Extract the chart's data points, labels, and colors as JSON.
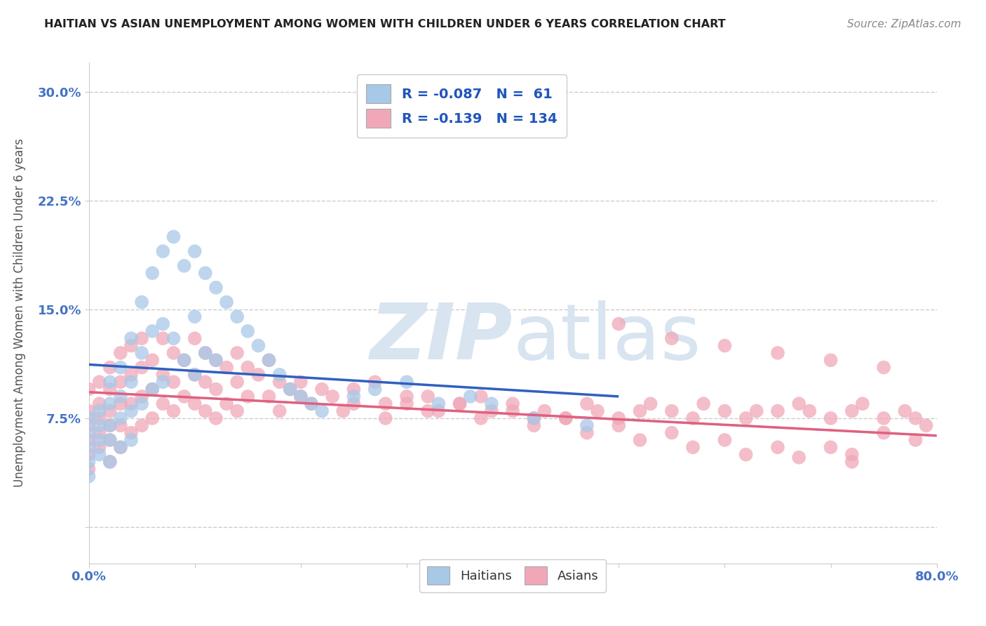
{
  "title": "HAITIAN VS ASIAN UNEMPLOYMENT AMONG WOMEN WITH CHILDREN UNDER 6 YEARS CORRELATION CHART",
  "source": "Source: ZipAtlas.com",
  "ylabel": "Unemployment Among Women with Children Under 6 years",
  "xlim": [
    0.0,
    0.8
  ],
  "ylim": [
    -0.025,
    0.32
  ],
  "xticks": [
    0.0,
    0.1,
    0.2,
    0.3,
    0.4,
    0.5,
    0.6,
    0.7,
    0.8
  ],
  "xticklabels": [
    "0.0%",
    "",
    "",
    "",
    "",
    "",
    "",
    "",
    "80.0%"
  ],
  "yticks": [
    0.0,
    0.075,
    0.15,
    0.225,
    0.3
  ],
  "yticklabels": [
    "",
    "7.5%",
    "15.0%",
    "22.5%",
    "30.0%"
  ],
  "haitian_R": -0.087,
  "haitian_N": 61,
  "asian_R": -0.139,
  "asian_N": 134,
  "haitian_color": "#a8c8e8",
  "asian_color": "#f0a8b8",
  "haitian_line_color": "#3060c0",
  "asian_line_color": "#e06080",
  "trend_dash_color": "#b8c8d8",
  "watermark_color": "#d8e4f0",
  "background_color": "#ffffff",
  "grid_color": "#cccccc",
  "haitian_scatter_x": [
    0.0,
    0.0,
    0.0,
    0.0,
    0.0,
    0.01,
    0.01,
    0.01,
    0.01,
    0.02,
    0.02,
    0.02,
    0.02,
    0.02,
    0.03,
    0.03,
    0.03,
    0.03,
    0.04,
    0.04,
    0.04,
    0.04,
    0.05,
    0.05,
    0.05,
    0.06,
    0.06,
    0.06,
    0.07,
    0.07,
    0.07,
    0.08,
    0.08,
    0.09,
    0.09,
    0.1,
    0.1,
    0.1,
    0.11,
    0.11,
    0.12,
    0.12,
    0.13,
    0.14,
    0.15,
    0.16,
    0.17,
    0.18,
    0.19,
    0.2,
    0.21,
    0.22,
    0.25,
    0.27,
    0.3,
    0.33,
    0.36,
    0.38,
    0.42,
    0.47
  ],
  "haitian_scatter_y": [
    0.075,
    0.065,
    0.055,
    0.045,
    0.035,
    0.08,
    0.07,
    0.06,
    0.05,
    0.1,
    0.085,
    0.07,
    0.06,
    0.045,
    0.11,
    0.09,
    0.075,
    0.055,
    0.13,
    0.1,
    0.08,
    0.06,
    0.155,
    0.12,
    0.085,
    0.175,
    0.135,
    0.095,
    0.19,
    0.14,
    0.1,
    0.2,
    0.13,
    0.18,
    0.115,
    0.19,
    0.145,
    0.105,
    0.175,
    0.12,
    0.165,
    0.115,
    0.155,
    0.145,
    0.135,
    0.125,
    0.115,
    0.105,
    0.095,
    0.09,
    0.085,
    0.08,
    0.09,
    0.095,
    0.1,
    0.085,
    0.09,
    0.085,
    0.075,
    0.07
  ],
  "asian_scatter_x": [
    0.0,
    0.0,
    0.0,
    0.0,
    0.0,
    0.0,
    0.01,
    0.01,
    0.01,
    0.01,
    0.01,
    0.02,
    0.02,
    0.02,
    0.02,
    0.02,
    0.02,
    0.03,
    0.03,
    0.03,
    0.03,
    0.03,
    0.04,
    0.04,
    0.04,
    0.04,
    0.05,
    0.05,
    0.05,
    0.05,
    0.06,
    0.06,
    0.06,
    0.07,
    0.07,
    0.07,
    0.08,
    0.08,
    0.08,
    0.09,
    0.09,
    0.1,
    0.1,
    0.1,
    0.11,
    0.11,
    0.11,
    0.12,
    0.12,
    0.12,
    0.13,
    0.13,
    0.14,
    0.14,
    0.14,
    0.15,
    0.15,
    0.16,
    0.17,
    0.17,
    0.18,
    0.18,
    0.19,
    0.2,
    0.21,
    0.22,
    0.23,
    0.24,
    0.25,
    0.27,
    0.28,
    0.3,
    0.32,
    0.33,
    0.35,
    0.37,
    0.38,
    0.4,
    0.42,
    0.43,
    0.45,
    0.47,
    0.48,
    0.5,
    0.52,
    0.53,
    0.55,
    0.57,
    0.58,
    0.6,
    0.62,
    0.63,
    0.65,
    0.67,
    0.68,
    0.7,
    0.72,
    0.73,
    0.75,
    0.77,
    0.78,
    0.79,
    0.5,
    0.55,
    0.6,
    0.65,
    0.7,
    0.75,
    0.3,
    0.35,
    0.4,
    0.45,
    0.5,
    0.55,
    0.6,
    0.65,
    0.7,
    0.72,
    0.75,
    0.78,
    0.2,
    0.25,
    0.28,
    0.32,
    0.37,
    0.42,
    0.47,
    0.52,
    0.57,
    0.62,
    0.67,
    0.72
  ],
  "asian_scatter_y": [
    0.095,
    0.08,
    0.07,
    0.06,
    0.05,
    0.04,
    0.1,
    0.085,
    0.075,
    0.065,
    0.055,
    0.11,
    0.095,
    0.08,
    0.07,
    0.06,
    0.045,
    0.12,
    0.1,
    0.085,
    0.07,
    0.055,
    0.125,
    0.105,
    0.085,
    0.065,
    0.13,
    0.11,
    0.09,
    0.07,
    0.115,
    0.095,
    0.075,
    0.13,
    0.105,
    0.085,
    0.12,
    0.1,
    0.08,
    0.115,
    0.09,
    0.13,
    0.105,
    0.085,
    0.12,
    0.1,
    0.08,
    0.115,
    0.095,
    0.075,
    0.11,
    0.085,
    0.12,
    0.1,
    0.08,
    0.11,
    0.09,
    0.105,
    0.115,
    0.09,
    0.1,
    0.08,
    0.095,
    0.09,
    0.085,
    0.095,
    0.09,
    0.08,
    0.085,
    0.1,
    0.075,
    0.085,
    0.09,
    0.08,
    0.085,
    0.09,
    0.08,
    0.085,
    0.075,
    0.08,
    0.075,
    0.085,
    0.08,
    0.075,
    0.08,
    0.085,
    0.08,
    0.075,
    0.085,
    0.08,
    0.075,
    0.08,
    0.08,
    0.085,
    0.08,
    0.075,
    0.08,
    0.085,
    0.075,
    0.08,
    0.075,
    0.07,
    0.14,
    0.13,
    0.125,
    0.12,
    0.115,
    0.11,
    0.09,
    0.085,
    0.08,
    0.075,
    0.07,
    0.065,
    0.06,
    0.055,
    0.055,
    0.05,
    0.065,
    0.06,
    0.1,
    0.095,
    0.085,
    0.08,
    0.075,
    0.07,
    0.065,
    0.06,
    0.055,
    0.05,
    0.048,
    0.045
  ],
  "haitian_trend_x0": 0.0,
  "haitian_trend_x1": 0.5,
  "haitian_trend_y0": 0.112,
  "haitian_trend_y1": 0.09,
  "asian_trend_x0": 0.0,
  "asian_trend_x1": 0.8,
  "asian_trend_y0": 0.093,
  "asian_trend_y1": 0.063
}
